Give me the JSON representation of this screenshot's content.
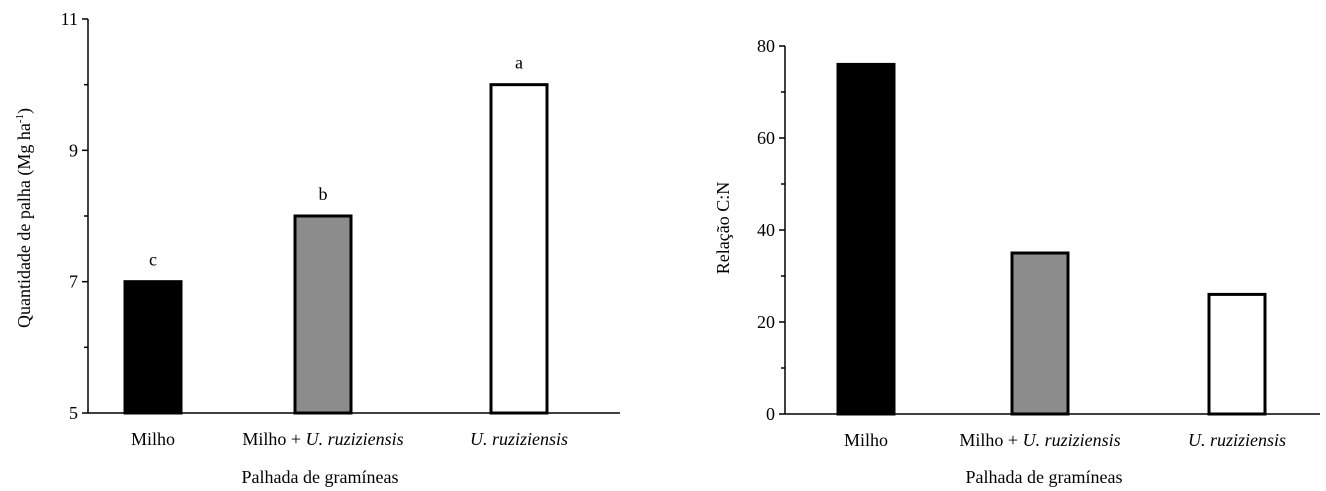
{
  "chart_data": [
    {
      "type": "bar",
      "categories": [
        "Milho",
        "Milho + U. ruziziensis",
        "U. ruziziensis"
      ],
      "category_parts": [
        {
          "plain": "Milho",
          "italic": ""
        },
        {
          "plain": "Milho + ",
          "italic": "U. ruziziensis"
        },
        {
          "plain": "",
          "italic": "U. ruziziensis"
        }
      ],
      "values": [
        7.0,
        8.0,
        10.0
      ],
      "significance_letters": [
        "c",
        "b",
        "a"
      ],
      "bar_fills": [
        "#000000",
        "#8c8c8c",
        "#ffffff"
      ],
      "xlabel": "Palhada de gramíneas",
      "ylabel_main": "Quantidade de palha (Mg ha",
      "ylabel_sup": "-1",
      "ylabel_end": ")",
      "ylim": [
        5,
        11
      ],
      "yticks": [
        "5",
        "7",
        "9",
        "11"
      ],
      "grid": false
    },
    {
      "type": "bar",
      "categories": [
        "Milho",
        "Milho + U. ruziziensis",
        "U. ruziziensis"
      ],
      "category_parts": [
        {
          "plain": "Milho",
          "italic": ""
        },
        {
          "plain": "Milho + ",
          "italic": "U. ruziziensis"
        },
        {
          "plain": "",
          "italic": "U. ruziziensis"
        }
      ],
      "values": [
        76,
        35,
        26
      ],
      "bar_fills": [
        "#000000",
        "#8c8c8c",
        "#ffffff"
      ],
      "xlabel": "Palhada de gramíneas",
      "ylabel": "Relação C:N",
      "ylim": [
        0,
        80
      ],
      "yticks": [
        "0",
        "20",
        "40",
        "60",
        "80"
      ],
      "grid": false
    }
  ]
}
